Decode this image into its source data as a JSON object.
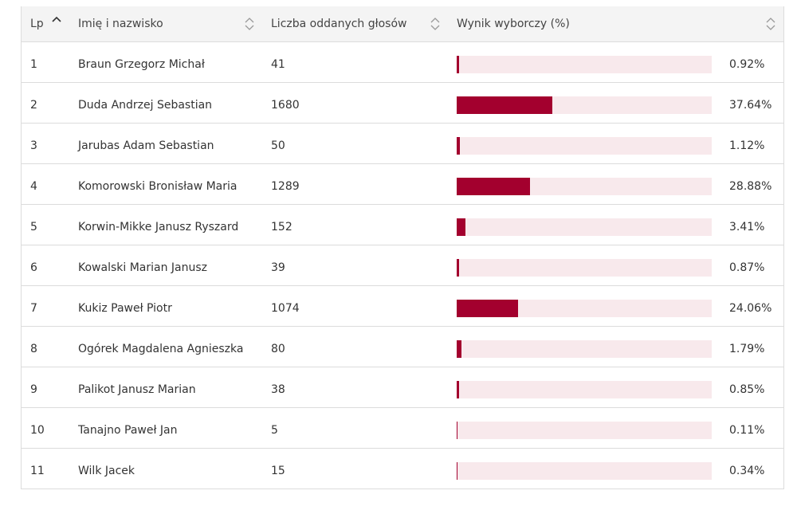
{
  "colors": {
    "bar_fill": "#a3002e",
    "bar_track": "#f8e9ec",
    "header_bg": "#f4f4f4"
  },
  "header": {
    "lp": "Lp",
    "name": "Imię i nazwisko",
    "votes": "Liczba oddanych głosów",
    "result": "Wynik wyborczy (%)"
  },
  "rows": [
    {
      "lp": "1",
      "name": "Braun Grzegorz Michał",
      "votes": "41",
      "percent_label": "0.92%",
      "percent": 0.92
    },
    {
      "lp": "2",
      "name": "Duda Andrzej Sebastian",
      "votes": "1680",
      "percent_label": "37.64%",
      "percent": 37.64
    },
    {
      "lp": "3",
      "name": "Jarubas Adam Sebastian",
      "votes": "50",
      "percent_label": "1.12%",
      "percent": 1.12
    },
    {
      "lp": "4",
      "name": "Komorowski Bronisław Maria",
      "votes": "1289",
      "percent_label": "28.88%",
      "percent": 28.88
    },
    {
      "lp": "5",
      "name": "Korwin-Mikke Janusz Ryszard",
      "votes": "152",
      "percent_label": "3.41%",
      "percent": 3.41
    },
    {
      "lp": "6",
      "name": "Kowalski Marian Janusz",
      "votes": "39",
      "percent_label": "0.87%",
      "percent": 0.87
    },
    {
      "lp": "7",
      "name": "Kukiz Paweł Piotr",
      "votes": "1074",
      "percent_label": "24.06%",
      "percent": 24.06
    },
    {
      "lp": "8",
      "name": "Ogórek Magdalena Agnieszka",
      "votes": "80",
      "percent_label": "1.79%",
      "percent": 1.79
    },
    {
      "lp": "9",
      "name": "Palikot Janusz Marian",
      "votes": "38",
      "percent_label": "0.85%",
      "percent": 0.85
    },
    {
      "lp": "10",
      "name": "Tanajno Paweł Jan",
      "votes": "5",
      "percent_label": "0.11%",
      "percent": 0.11
    },
    {
      "lp": "11",
      "name": "Wilk Jacek",
      "votes": "15",
      "percent_label": "0.34%",
      "percent": 0.34
    }
  ]
}
